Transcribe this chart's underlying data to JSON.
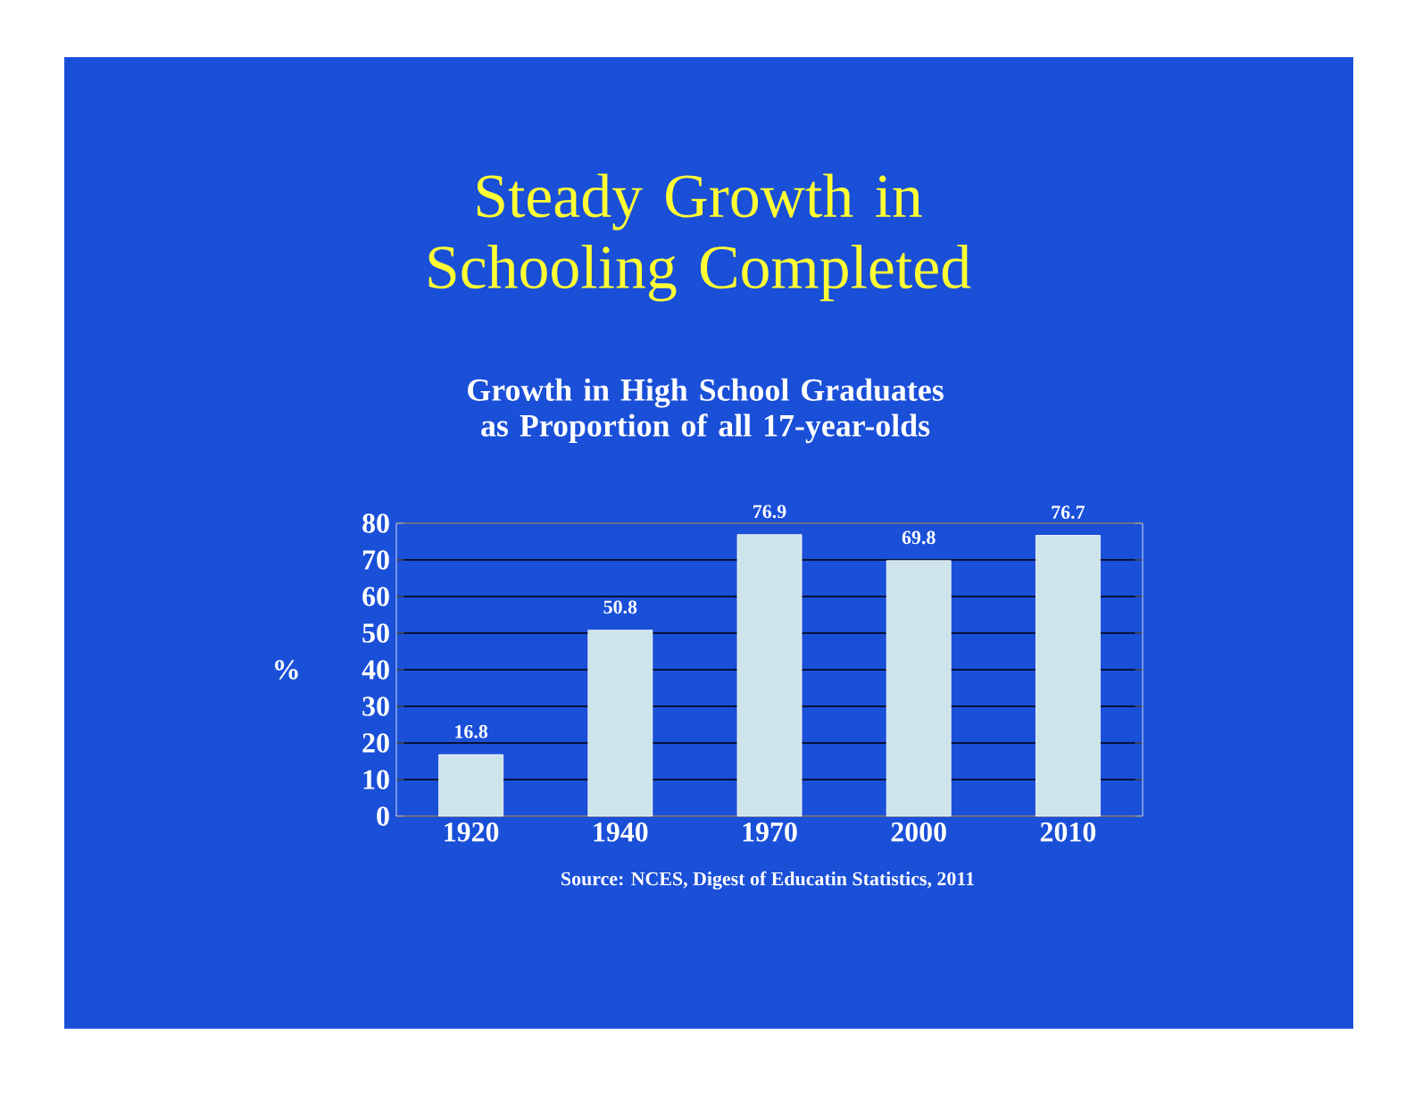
{
  "chart_data": {
    "type": "bar",
    "title": "Steady Growth in Schooling Completed",
    "subtitle": "Growth in High School Graduates as Proportion of all 17-year-olds",
    "ylabel": "%",
    "categories": [
      "1920",
      "1940",
      "1970",
      "2000",
      "2010"
    ],
    "values": [
      16.8,
      50.8,
      76.9,
      69.8,
      76.7
    ],
    "color": "#cce4ea",
    "ylim": [
      0,
      80
    ],
    "yticks": [
      0,
      10,
      20,
      30,
      40,
      50,
      60,
      70,
      80
    ],
    "grid": "y",
    "data_labels": true,
    "annotations": [
      "Source: NCES, Digest of Educatin Statistics, 2011"
    ]
  }
}
